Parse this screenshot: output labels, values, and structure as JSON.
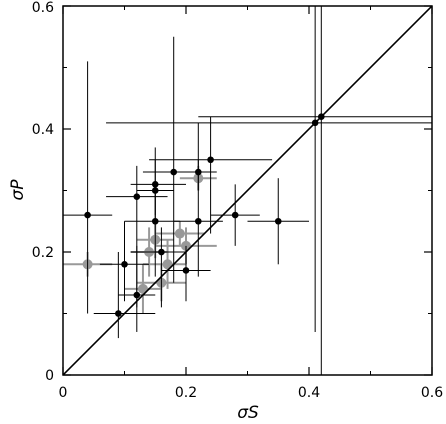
{
  "chart_data": {
    "type": "scatter",
    "xlabel": "σS",
    "ylabel": "σP",
    "xlim": [
      0,
      0.6
    ],
    "ylim": [
      0,
      0.6
    ],
    "x_ticks": [
      "0",
      "0.2",
      "0.4",
      "0.6"
    ],
    "y_ticks": [
      "0",
      "0.2",
      "0.4",
      "0.6"
    ],
    "grid": false,
    "reference_line": {
      "from": [
        0,
        0
      ],
      "to": [
        0.6,
        0.6
      ]
    },
    "colors": {
      "black_series": "#000000",
      "gray_series": "#999999"
    },
    "series": [
      {
        "color": "black",
        "points": [
          {
            "x": 0.04,
            "y": 0.26,
            "xerr": [
              0.04,
              0.04
            ],
            "yerr": [
              0.16,
              0.25
            ]
          },
          {
            "x": 0.09,
            "y": 0.1,
            "xerr": [
              0.04,
              0.06
            ],
            "yerr": [
              0.04,
              0.1
            ]
          },
          {
            "x": 0.1,
            "y": 0.18,
            "xerr": [
              0.04,
              0.04
            ],
            "yerr": [
              0.06,
              0.07
            ]
          },
          {
            "x": 0.12,
            "y": 0.29,
            "xerr": [
              0.05,
              0.05
            ],
            "yerr": [
              0.18,
              0.05
            ]
          },
          {
            "x": 0.12,
            "y": 0.13,
            "xerr": [
              0.03,
              0.03
            ],
            "yerr": [
              0.06,
              0.08
            ]
          },
          {
            "x": 0.15,
            "y": 0.31,
            "xerr": [
              0.04,
              0.05
            ],
            "yerr": [
              0.06,
              0.06
            ]
          },
          {
            "x": 0.15,
            "y": 0.3,
            "xerr": [
              0.03,
              0.03
            ],
            "yerr": [
              0.04,
              0.05
            ]
          },
          {
            "x": 0.15,
            "y": 0.25,
            "xerr": [
              0.05,
              0.04
            ],
            "yerr": [
              0.09,
              0.05
            ]
          },
          {
            "x": 0.16,
            "y": 0.2,
            "xerr": [
              0.05,
              0.04
            ],
            "yerr": [
              0.09,
              0.04
            ]
          },
          {
            "x": 0.18,
            "y": 0.33,
            "xerr": [
              0.05,
              0.05
            ],
            "yerr": [
              0.18,
              0.22
            ]
          },
          {
            "x": 0.2,
            "y": 0.17,
            "xerr": [
              0.04,
              0.04
            ],
            "yerr": [
              0.05,
              0.04
            ]
          },
          {
            "x": 0.22,
            "y": 0.33,
            "xerr": [
              0.03,
              0.03
            ],
            "yerr": [
              0.03,
              0.02
            ]
          },
          {
            "x": 0.22,
            "y": 0.25,
            "xerr": [
              0.04,
              0.04
            ],
            "yerr": [
              0.09,
              0.16
            ]
          },
          {
            "x": 0.24,
            "y": 0.35,
            "xerr": [
              0.1,
              0.1
            ],
            "yerr": [
              0.12,
              0.07
            ]
          },
          {
            "x": 0.28,
            "y": 0.26,
            "xerr": [
              0.04,
              0.04
            ],
            "yerr": [
              0.05,
              0.05
            ]
          },
          {
            "x": 0.35,
            "y": 0.25,
            "xerr": [
              0.05,
              0.05
            ],
            "yerr": [
              0.07,
              0.07
            ]
          },
          {
            "x": 0.41,
            "y": 0.41,
            "xerr": [
              0.34,
              0.19
            ],
            "yerr": [
              0.34,
              0.19
            ]
          },
          {
            "x": 0.42,
            "y": 0.42,
            "xerr": [
              0.2,
              0.18
            ],
            "yerr": [
              0.42,
              0.18
            ]
          }
        ]
      },
      {
        "color": "gray",
        "points": [
          {
            "x": 0.04,
            "y": 0.18,
            "xerr": [
              0.04,
              0.04
            ],
            "yerr": [
              0.02,
              0.02
            ]
          },
          {
            "x": 0.13,
            "y": 0.14,
            "xerr": [
              0.03,
              0.03
            ],
            "yerr": [
              0.04,
              0.04
            ]
          },
          {
            "x": 0.14,
            "y": 0.2,
            "xerr": [
              0.03,
              0.03
            ],
            "yerr": [
              0.04,
              0.04
            ]
          },
          {
            "x": 0.15,
            "y": 0.22,
            "xerr": [
              0.03,
              0.03
            ],
            "yerr": [
              0.03,
              0.03
            ]
          },
          {
            "x": 0.16,
            "y": 0.15,
            "xerr": [
              0.04,
              0.04
            ],
            "yerr": [
              0.03,
              0.03
            ]
          },
          {
            "x": 0.17,
            "y": 0.18,
            "xerr": [
              0.04,
              0.03
            ],
            "yerr": [
              0.04,
              0.04
            ]
          },
          {
            "x": 0.19,
            "y": 0.23,
            "xerr": [
              0.04,
              0.04
            ],
            "yerr": [
              0.02,
              0.02
            ]
          },
          {
            "x": 0.2,
            "y": 0.21,
            "xerr": [
              0.05,
              0.05
            ],
            "yerr": [
              0.03,
              0.03
            ]
          },
          {
            "x": 0.22,
            "y": 0.32,
            "xerr": [
              0.03,
              0.03
            ],
            "yerr": [
              0.02,
              0.02
            ]
          }
        ]
      }
    ]
  }
}
